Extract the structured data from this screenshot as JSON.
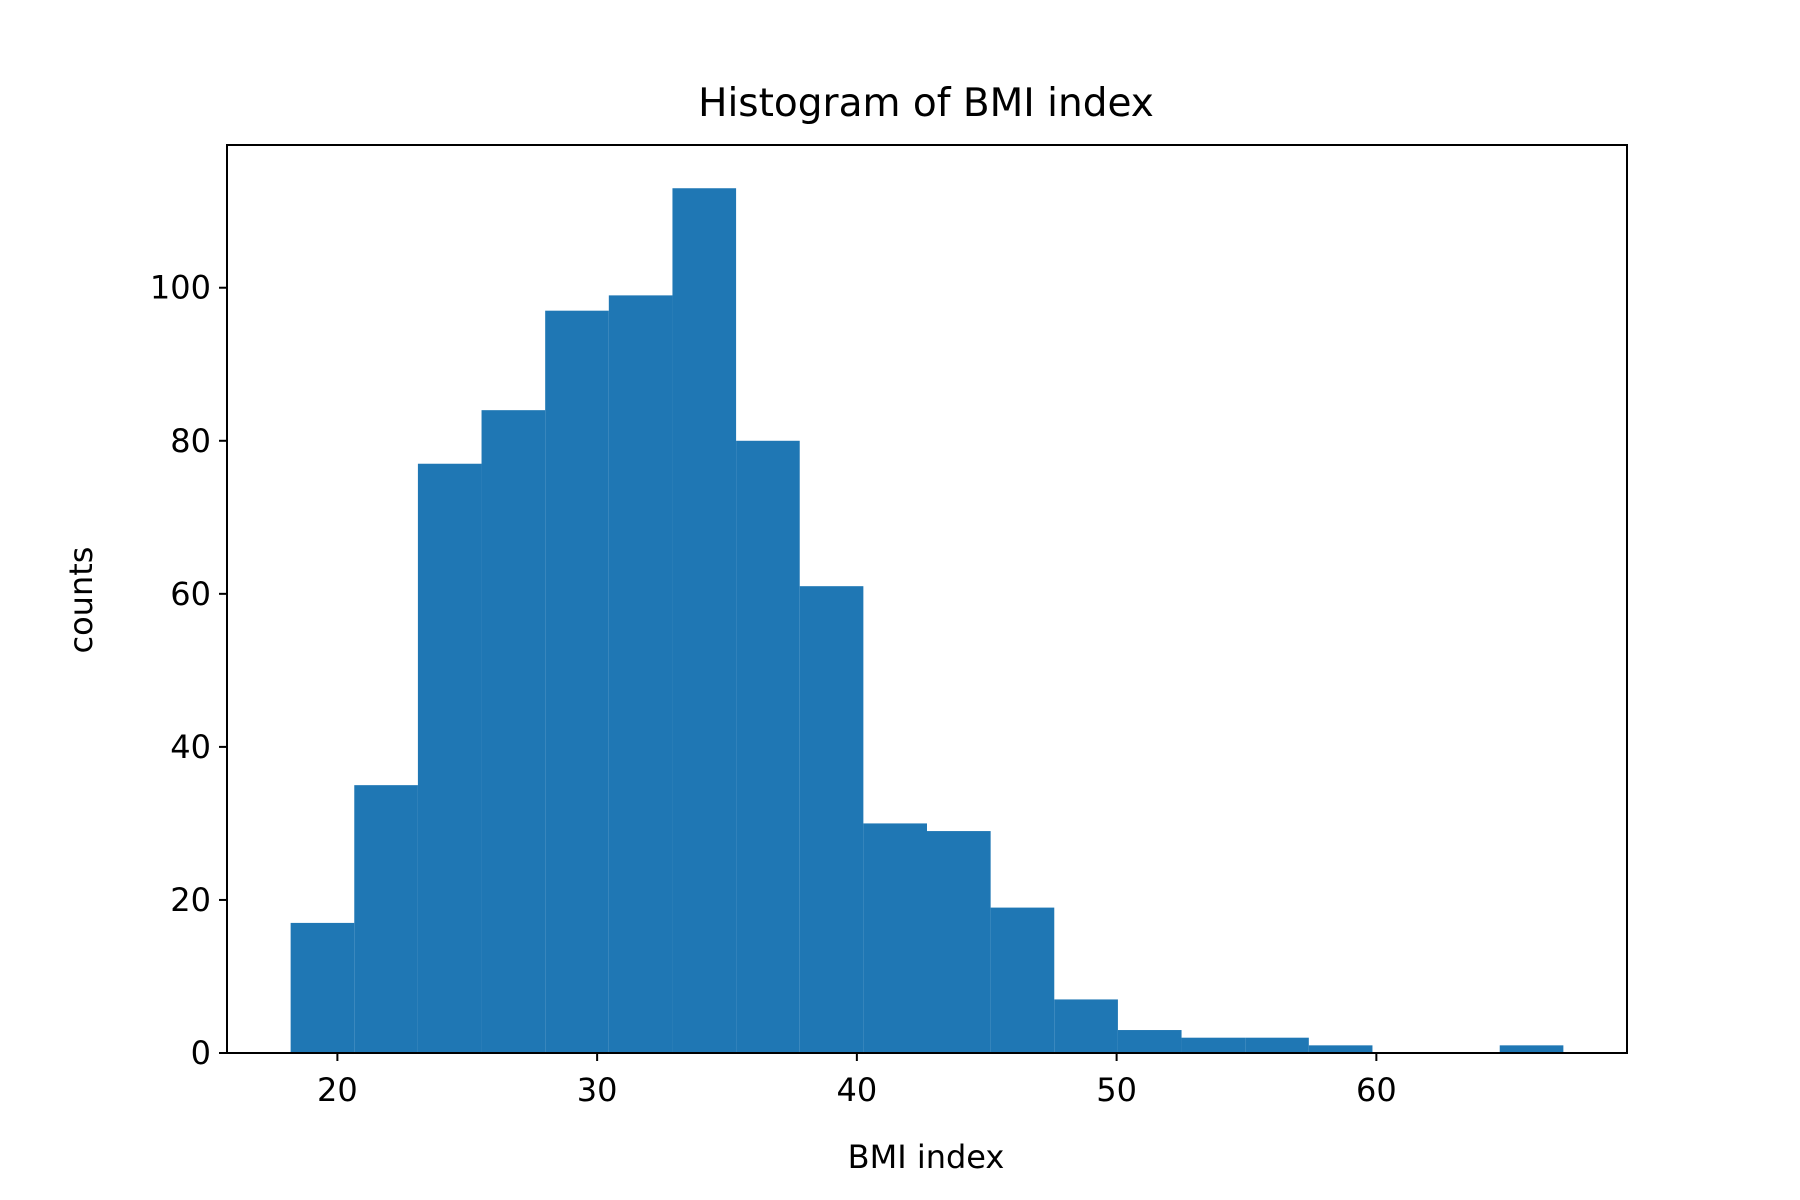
{
  "chart_data": {
    "type": "bar",
    "title": "Histogram of BMI index",
    "xlabel": "BMI index",
    "ylabel": "counts",
    "bin_edges": [
      18.2,
      20.65,
      23.1,
      25.55,
      28.0,
      30.45,
      32.9,
      35.35,
      37.8,
      40.25,
      42.7,
      45.15,
      47.6,
      50.05,
      52.5,
      54.95,
      57.4,
      59.85,
      62.3,
      64.75,
      67.2
    ],
    "values": [
      17,
      35,
      77,
      84,
      97,
      99,
      113,
      80,
      61,
      30,
      29,
      19,
      7,
      3,
      2,
      2,
      1,
      0,
      0,
      1
    ],
    "xlim": [
      15.75,
      69.65
    ],
    "ylim": [
      0,
      118.65
    ],
    "xticks": [
      20,
      30,
      40,
      50,
      60
    ],
    "xtick_labels": [
      "20",
      "30",
      "40",
      "50",
      "60"
    ],
    "yticks": [
      0,
      20,
      40,
      60,
      80,
      100
    ],
    "ytick_labels": [
      "0",
      "20",
      "40",
      "60",
      "80",
      "100"
    ],
    "bar_color": "#1f77b4",
    "grid": false
  }
}
